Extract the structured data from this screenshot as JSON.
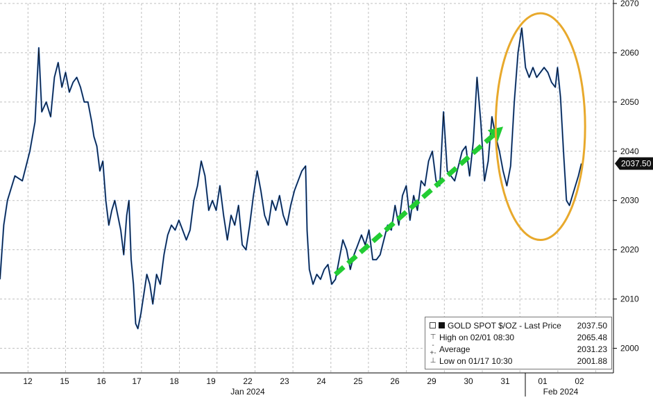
{
  "chart_data": {
    "type": "line",
    "series": [
      {
        "name": "GOLD SPOT $/OZ - Last Price",
        "points": [
          [
            0,
            2014
          ],
          [
            0.5,
            2025
          ],
          [
            1,
            2030
          ],
          [
            2,
            2035
          ],
          [
            3,
            2034
          ],
          [
            4,
            2040
          ],
          [
            4.7,
            2046
          ],
          [
            5.2,
            2061
          ],
          [
            5.6,
            2048
          ],
          [
            6.2,
            2050
          ],
          [
            6.8,
            2047
          ],
          [
            7.3,
            2055
          ],
          [
            7.8,
            2058
          ],
          [
            8.3,
            2053
          ],
          [
            8.8,
            2056
          ],
          [
            9.3,
            2052
          ],
          [
            9.8,
            2054
          ],
          [
            10.3,
            2055
          ],
          [
            10.8,
            2053
          ],
          [
            11.3,
            2050
          ],
          [
            11.8,
            2050
          ],
          [
            12.3,
            2046
          ],
          [
            12.6,
            2043
          ],
          [
            13.0,
            2041
          ],
          [
            13.4,
            2036
          ],
          [
            13.8,
            2038
          ],
          [
            14.2,
            2030
          ],
          [
            14.6,
            2025
          ],
          [
            15.0,
            2028
          ],
          [
            15.4,
            2030
          ],
          [
            15.8,
            2027
          ],
          [
            16.2,
            2024
          ],
          [
            16.6,
            2019
          ],
          [
            17.0,
            2027
          ],
          [
            17.3,
            2030
          ],
          [
            17.6,
            2018
          ],
          [
            17.9,
            2013
          ],
          [
            18.2,
            2005
          ],
          [
            18.5,
            2004
          ],
          [
            18.9,
            2007
          ],
          [
            19.3,
            2011
          ],
          [
            19.7,
            2015
          ],
          [
            20.1,
            2013
          ],
          [
            20.5,
            2009
          ],
          [
            21.0,
            2015
          ],
          [
            21.5,
            2013
          ],
          [
            22.0,
            2019
          ],
          [
            22.5,
            2023
          ],
          [
            23.0,
            2025
          ],
          [
            23.5,
            2024
          ],
          [
            24.0,
            2026
          ],
          [
            24.5,
            2024
          ],
          [
            25.0,
            2022
          ],
          [
            25.5,
            2024
          ],
          [
            26.0,
            2030
          ],
          [
            26.5,
            2033
          ],
          [
            27.0,
            2038
          ],
          [
            27.5,
            2035
          ],
          [
            28.0,
            2028
          ],
          [
            28.5,
            2030
          ],
          [
            29.0,
            2028
          ],
          [
            29.5,
            2033
          ],
          [
            30.0,
            2027
          ],
          [
            30.5,
            2022
          ],
          [
            31.0,
            2027
          ],
          [
            31.5,
            2025
          ],
          [
            32.0,
            2029
          ],
          [
            32.5,
            2021
          ],
          [
            33.0,
            2020
          ],
          [
            33.5,
            2025
          ],
          [
            34.0,
            2031
          ],
          [
            34.5,
            2036
          ],
          [
            35.0,
            2032
          ],
          [
            35.5,
            2027
          ],
          [
            36.0,
            2025
          ],
          [
            36.5,
            2030
          ],
          [
            37.0,
            2028
          ],
          [
            37.5,
            2031
          ],
          [
            38.0,
            2027
          ],
          [
            38.5,
            2025
          ],
          [
            39.0,
            2029
          ],
          [
            39.5,
            2032
          ],
          [
            40.0,
            2034
          ],
          [
            40.5,
            2036
          ],
          [
            41.0,
            2037
          ],
          [
            41.2,
            2024
          ],
          [
            41.5,
            2016
          ],
          [
            42.0,
            2013
          ],
          [
            42.5,
            2015
          ],
          [
            43.0,
            2014
          ],
          [
            43.5,
            2016
          ],
          [
            44.0,
            2017
          ],
          [
            44.5,
            2013
          ],
          [
            45.0,
            2014
          ],
          [
            45.5,
            2018
          ],
          [
            46.0,
            2022
          ],
          [
            46.5,
            2020
          ],
          [
            47.0,
            2016
          ],
          [
            47.5,
            2019
          ],
          [
            48.0,
            2021
          ],
          [
            48.5,
            2023
          ],
          [
            49.0,
            2021
          ],
          [
            49.5,
            2024
          ],
          [
            50.0,
            2018
          ],
          [
            50.5,
            2018
          ],
          [
            51.0,
            2019
          ],
          [
            52.0,
            2025
          ],
          [
            52.5,
            2024
          ],
          [
            53.0,
            2029
          ],
          [
            53.5,
            2025
          ],
          [
            54.0,
            2031
          ],
          [
            54.5,
            2033
          ],
          [
            55.0,
            2026
          ],
          [
            55.5,
            2031
          ],
          [
            56.0,
            2028
          ],
          [
            56.5,
            2034
          ],
          [
            57.0,
            2033
          ],
          [
            57.5,
            2038
          ],
          [
            58.0,
            2040
          ],
          [
            58.5,
            2034
          ],
          [
            59.0,
            2033
          ],
          [
            59.5,
            2048
          ],
          [
            60.0,
            2036
          ],
          [
            60.5,
            2035
          ],
          [
            61.0,
            2034
          ],
          [
            61.5,
            2037
          ],
          [
            62.0,
            2040
          ],
          [
            62.5,
            2041
          ],
          [
            63.0,
            2035
          ],
          [
            63.5,
            2042
          ],
          [
            64.0,
            2055
          ],
          [
            64.5,
            2046
          ],
          [
            65.0,
            2034
          ],
          [
            65.5,
            2038
          ],
          [
            66.0,
            2047
          ],
          [
            66.5,
            2043
          ],
          [
            67.0,
            2040
          ],
          [
            67.5,
            2036
          ],
          [
            68.0,
            2033
          ],
          [
            68.5,
            2037
          ],
          [
            69.0,
            2050
          ],
          [
            69.5,
            2060
          ],
          [
            70.0,
            2065
          ],
          [
            70.5,
            2057
          ],
          [
            71.0,
            2055
          ],
          [
            71.5,
            2057
          ],
          [
            72.0,
            2055
          ],
          [
            72.5,
            2056
          ],
          [
            73.0,
            2057
          ],
          [
            73.5,
            2056
          ],
          [
            74.0,
            2054
          ],
          [
            74.5,
            2053
          ],
          [
            74.8,
            2057
          ],
          [
            75.2,
            2051
          ],
          [
            75.6,
            2040
          ],
          [
            76.0,
            2030
          ],
          [
            76.4,
            2029
          ],
          [
            76.8,
            2031
          ],
          [
            77.2,
            2033
          ],
          [
            77.6,
            2035
          ],
          [
            78.0,
            2037.5
          ]
        ]
      }
    ],
    "xlabels": [
      "12",
      "15",
      "16",
      "17",
      "18",
      "19",
      "22",
      "23",
      "24",
      "25",
      "26",
      "29",
      "30",
      "31",
      "01",
      "02"
    ],
    "xlabel_groups": [
      "Jan 2024",
      "Feb 2024"
    ],
    "ylim": [
      1995,
      2070
    ],
    "yticks": [
      2000,
      2010,
      2020,
      2030,
      2040,
      2050,
      2060,
      2070
    ],
    "last_price_label": "2037.50",
    "grid": true,
    "annotations": [
      {
        "type": "trend-arrow",
        "color": "#22cc33",
        "from": [
          45.0,
          2015
        ],
        "to": [
          67.5,
          2045
        ]
      },
      {
        "type": "ellipse",
        "color": "#e8a92c",
        "center": [
          72.5,
          2045
        ],
        "rx": 6.0,
        "ry": 23
      }
    ]
  },
  "legend": {
    "title": "GOLD SPOT $/OZ - Last Price",
    "title_value": "2037.50",
    "high_label": "High on 02/01 08:30",
    "high_value": "2065.48",
    "avg_label": "Average",
    "avg_value": "2031.23",
    "low_label": "Low on 01/17 10:30",
    "low_value": "2001.88"
  },
  "colors": {
    "line_dark": "#111111",
    "line_blue": "#2a6fd0",
    "grid": "#bfbfbf",
    "arrow": "#22cc33",
    "ellipse": "#e8a92c"
  }
}
